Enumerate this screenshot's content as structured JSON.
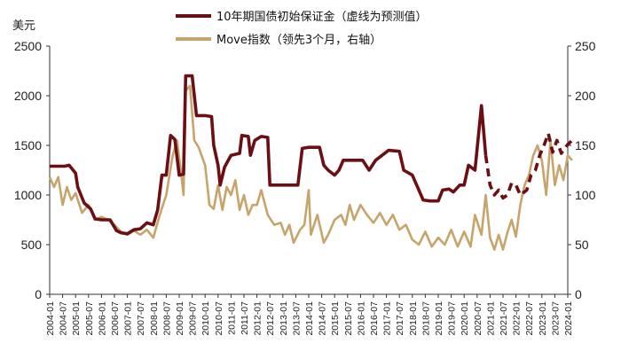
{
  "chart_data": {
    "type": "line",
    "left_unit": "美元",
    "y_left": {
      "lim": [
        0,
        2500
      ],
      "ticks": [
        "0",
        "500",
        "1000",
        "1500",
        "2000",
        "2500"
      ]
    },
    "y_right": {
      "lim": [
        0,
        250
      ],
      "ticks": [
        "0",
        "50",
        "100",
        "150",
        "200",
        "250"
      ]
    },
    "x_ticks": [
      "2004-01",
      "2004-07",
      "2005-01",
      "2005-07",
      "2006-01",
      "2006-07",
      "2007-01",
      "2007-07",
      "2008-01",
      "2008-07",
      "2009-01",
      "2009-07",
      "2010-01",
      "2010-07",
      "2011-01",
      "2011-07",
      "2012-01",
      "2012-07",
      "2013-01",
      "2013-07",
      "2014-01",
      "2014-07",
      "2015-01",
      "2015-07",
      "2016-01",
      "2016-07",
      "2017-01",
      "2017-07",
      "2018-01",
      "2018-07",
      "2019-01",
      "2019-07",
      "2020-01",
      "2020-07",
      "2021-01",
      "2021-07",
      "2022-01",
      "2022-07",
      "2023-01",
      "2023-07",
      "2024-01"
    ],
    "legend": "top-center",
    "colors": {
      "margin": "#6b0f14",
      "move": "#c6a46c"
    },
    "series": [
      {
        "name": "10年期国债初始保证金（虚线为预测值）",
        "axis": "left",
        "style": "solid",
        "points": [
          [
            "2004-01",
            1290
          ],
          [
            "2004-08",
            1290
          ],
          [
            "2004-10",
            1300
          ],
          [
            "2005-01",
            1220
          ],
          [
            "2005-02",
            1080
          ],
          [
            "2005-05",
            920
          ],
          [
            "2005-08",
            860
          ],
          [
            "2005-10",
            760
          ],
          [
            "2006-01",
            750
          ],
          [
            "2006-05",
            750
          ],
          [
            "2006-08",
            640
          ],
          [
            "2006-10",
            620
          ],
          [
            "2007-01",
            610
          ],
          [
            "2007-04",
            650
          ],
          [
            "2007-07",
            660
          ],
          [
            "2007-10",
            720
          ],
          [
            "2008-01",
            700
          ],
          [
            "2008-03",
            850
          ],
          [
            "2008-05",
            1200
          ],
          [
            "2008-07",
            1200
          ],
          [
            "2008-09",
            1600
          ],
          [
            "2008-11",
            1560
          ],
          [
            "2009-01",
            1200
          ],
          [
            "2009-03",
            1210
          ],
          [
            "2009-04",
            2200
          ],
          [
            "2009-07",
            2200
          ],
          [
            "2009-09",
            1800
          ],
          [
            "2009-11",
            1800
          ],
          [
            "2010-01",
            1800
          ],
          [
            "2010-04",
            1790
          ],
          [
            "2010-05",
            1500
          ],
          [
            "2010-07",
            1300
          ],
          [
            "2010-08",
            1100
          ],
          [
            "2010-10",
            1280
          ],
          [
            "2011-01",
            1400
          ],
          [
            "2011-05",
            1420
          ],
          [
            "2011-06",
            1600
          ],
          [
            "2011-09",
            1590
          ],
          [
            "2011-10",
            1400
          ],
          [
            "2011-12",
            1550
          ],
          [
            "2012-03",
            1590
          ],
          [
            "2012-06",
            1580
          ],
          [
            "2012-07",
            1100
          ],
          [
            "2013-01",
            1100
          ],
          [
            "2013-06",
            1100
          ],
          [
            "2013-08",
            1100
          ],
          [
            "2013-10",
            1470
          ],
          [
            "2014-01",
            1480
          ],
          [
            "2014-06",
            1480
          ],
          [
            "2014-08",
            1300
          ],
          [
            "2014-10",
            1250
          ],
          [
            "2015-01",
            1200
          ],
          [
            "2015-03",
            1250
          ],
          [
            "2015-05",
            1350
          ],
          [
            "2015-08",
            1350
          ],
          [
            "2016-02",
            1350
          ],
          [
            "2016-05",
            1250
          ],
          [
            "2016-08",
            1350
          ],
          [
            "2016-11",
            1400
          ],
          [
            "2017-02",
            1450
          ],
          [
            "2017-07",
            1440
          ],
          [
            "2017-09",
            1250
          ],
          [
            "2018-01",
            1200
          ],
          [
            "2018-03",
            1100
          ],
          [
            "2018-06",
            950
          ],
          [
            "2018-09",
            940
          ],
          [
            "2019-01",
            940
          ],
          [
            "2019-03",
            1050
          ],
          [
            "2019-06",
            1060
          ],
          [
            "2019-08",
            1030
          ],
          [
            "2019-11",
            1100
          ],
          [
            "2020-01",
            1100
          ],
          [
            "2020-03",
            1300
          ],
          [
            "2020-06",
            1250
          ],
          [
            "2020-09",
            1900
          ],
          [
            "2020-11",
            1400
          ]
        ]
      },
      {
        "name": "10年期国债初始保证金（预测）",
        "axis": "left",
        "style": "dashed",
        "points": [
          [
            "2020-11",
            1400
          ],
          [
            "2021-01",
            1100
          ],
          [
            "2021-03",
            1000
          ],
          [
            "2021-05",
            1050
          ],
          [
            "2021-07",
            970
          ],
          [
            "2021-09",
            1000
          ],
          [
            "2021-11",
            1120
          ],
          [
            "2022-01",
            1100
          ],
          [
            "2022-03",
            1000
          ],
          [
            "2022-06",
            1050
          ],
          [
            "2022-08",
            1200
          ],
          [
            "2022-10",
            1250
          ],
          [
            "2022-12",
            1400
          ],
          [
            "2023-02",
            1500
          ],
          [
            "2023-04",
            1620
          ],
          [
            "2023-06",
            1430
          ],
          [
            "2023-08",
            1550
          ],
          [
            "2023-10",
            1420
          ],
          [
            "2024-01",
            1510
          ],
          [
            "2024-03",
            1550
          ]
        ]
      },
      {
        "name": "Move指数（领先3个月，右轴）",
        "axis": "right",
        "style": "solid",
        "points": [
          [
            "2004-01",
            118
          ],
          [
            "2004-03",
            108
          ],
          [
            "2004-05",
            118
          ],
          [
            "2004-07",
            90
          ],
          [
            "2004-09",
            108
          ],
          [
            "2004-11",
            95
          ],
          [
            "2005-01",
            102
          ],
          [
            "2005-04",
            82
          ],
          [
            "2005-07",
            90
          ],
          [
            "2005-10",
            75
          ],
          [
            "2006-01",
            78
          ],
          [
            "2006-04",
            75
          ],
          [
            "2006-07",
            70
          ],
          [
            "2006-10",
            63
          ],
          [
            "2007-01",
            60
          ],
          [
            "2007-04",
            64
          ],
          [
            "2007-07",
            60
          ],
          [
            "2007-10",
            65
          ],
          [
            "2008-01",
            57
          ],
          [
            "2008-04",
            80
          ],
          [
            "2008-07",
            100
          ],
          [
            "2008-10",
            140
          ],
          [
            "2008-12",
            155
          ],
          [
            "2009-02",
            120
          ],
          [
            "2009-03",
            100
          ],
          [
            "2009-04",
            205
          ],
          [
            "2009-06",
            210
          ],
          [
            "2009-08",
            155
          ],
          [
            "2009-10",
            148
          ],
          [
            "2010-01",
            130
          ],
          [
            "2010-03",
            90
          ],
          [
            "2010-05",
            86
          ],
          [
            "2010-07",
            110
          ],
          [
            "2010-09",
            85
          ],
          [
            "2010-11",
            108
          ],
          [
            "2011-01",
            100
          ],
          [
            "2011-03",
            115
          ],
          [
            "2011-05",
            85
          ],
          [
            "2011-07",
            100
          ],
          [
            "2011-09",
            80
          ],
          [
            "2011-11",
            90
          ],
          [
            "2012-01",
            90
          ],
          [
            "2012-03",
            105
          ],
          [
            "2012-06",
            80
          ],
          [
            "2012-09",
            70
          ],
          [
            "2012-12",
            72
          ],
          [
            "2013-02",
            60
          ],
          [
            "2013-04",
            70
          ],
          [
            "2013-06",
            52
          ],
          [
            "2013-09",
            65
          ],
          [
            "2013-11",
            70
          ],
          [
            "2014-01",
            105
          ],
          [
            "2014-02",
            60
          ],
          [
            "2014-05",
            80
          ],
          [
            "2014-08",
            52
          ],
          [
            "2014-10",
            60
          ],
          [
            "2015-01",
            75
          ],
          [
            "2015-04",
            80
          ],
          [
            "2015-06",
            70
          ],
          [
            "2015-08",
            90
          ],
          [
            "2015-10",
            75
          ],
          [
            "2016-01",
            90
          ],
          [
            "2016-04",
            80
          ],
          [
            "2016-07",
            72
          ],
          [
            "2016-10",
            82
          ],
          [
            "2017-01",
            70
          ],
          [
            "2017-04",
            80
          ],
          [
            "2017-07",
            65
          ],
          [
            "2017-10",
            70
          ],
          [
            "2018-01",
            55
          ],
          [
            "2018-04",
            50
          ],
          [
            "2018-07",
            63
          ],
          [
            "2018-10",
            48
          ],
          [
            "2019-01",
            57
          ],
          [
            "2019-04",
            50
          ],
          [
            "2019-07",
            65
          ],
          [
            "2019-10",
            48
          ],
          [
            "2020-01",
            63
          ],
          [
            "2020-04",
            48
          ],
          [
            "2020-06",
            80
          ],
          [
            "2020-09",
            60
          ],
          [
            "2020-11",
            100
          ],
          [
            "2021-01",
            57
          ],
          [
            "2021-03",
            45
          ],
          [
            "2021-05",
            60
          ],
          [
            "2021-07",
            45
          ],
          [
            "2021-09",
            62
          ],
          [
            "2021-11",
            75
          ],
          [
            "2022-01",
            58
          ],
          [
            "2022-03",
            90
          ],
          [
            "2022-05",
            110
          ],
          [
            "2022-07",
            120
          ],
          [
            "2022-09",
            140
          ],
          [
            "2022-11",
            150
          ],
          [
            "2023-01",
            135
          ],
          [
            "2023-03",
            100
          ],
          [
            "2023-05",
            155
          ],
          [
            "2023-07",
            110
          ],
          [
            "2023-09",
            130
          ],
          [
            "2023-11",
            115
          ],
          [
            "2024-01",
            140
          ],
          [
            "2024-03",
            135
          ]
        ]
      }
    ]
  }
}
